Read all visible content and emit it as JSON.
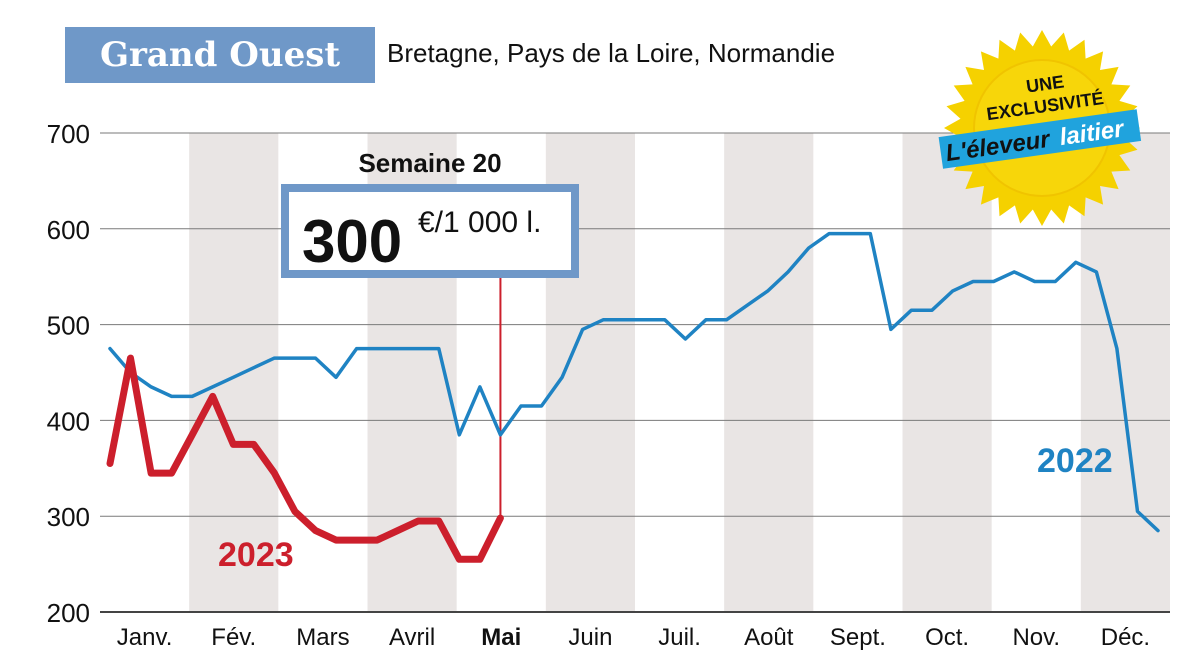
{
  "header": {
    "title": "Grand Ouest",
    "subtitle": "Bretagne, Pays de la Loire, Normandie"
  },
  "badge": {
    "line1": "UNE",
    "line2": "EXCLUSIVITÉ",
    "brand_part1": "L'éleveur",
    "brand_part2": "laitier"
  },
  "callout": {
    "week_label": "Semaine 20",
    "value": "300",
    "unit": "€/1 000 l."
  },
  "colors": {
    "line_2022": "#1f83c3",
    "line_2023": "#cc1f2c",
    "title_box": "#6f98c8",
    "band": "#e9e5e4",
    "badge": "#f5d100"
  },
  "chart_data": {
    "type": "line",
    "x_unit": "week",
    "x_range": [
      1,
      52
    ],
    "ylim": [
      200,
      700
    ],
    "yticks": [
      200,
      300,
      400,
      500,
      600,
      700
    ],
    "months": [
      "Janv.",
      "Fév.",
      "Mars",
      "Avril",
      "Mai",
      "Juin",
      "Juil.",
      "Août",
      "Sept.",
      "Oct.",
      "Nov.",
      "Déc."
    ],
    "highlight_month": "Mai",
    "grid": "horizontal",
    "series": [
      {
        "name": "2022",
        "weeks": [
          1,
          2,
          3,
          4,
          5,
          6,
          7,
          8,
          9,
          10,
          11,
          12,
          13,
          14,
          15,
          16,
          17,
          18,
          19,
          20,
          21,
          22,
          23,
          24,
          25,
          26,
          27,
          28,
          29,
          30,
          31,
          32,
          33,
          34,
          35,
          36,
          37,
          38,
          39,
          40,
          41,
          42,
          43,
          44,
          45,
          46,
          47,
          48,
          49,
          50,
          51,
          52
        ],
        "values": [
          475,
          450,
          435,
          425,
          425,
          435,
          445,
          455,
          465,
          465,
          465,
          445,
          475,
          475,
          475,
          475,
          475,
          385,
          435,
          385,
          415,
          415,
          445,
          495,
          505,
          505,
          505,
          505,
          485,
          505,
          505,
          520,
          535,
          555,
          580,
          595,
          595,
          595,
          495,
          515,
          515,
          535,
          545,
          545,
          555,
          545,
          545,
          565,
          555,
          475,
          305,
          285
        ]
      },
      {
        "name": "2023",
        "weeks": [
          1,
          2,
          3,
          4,
          5,
          6,
          7,
          8,
          9,
          10,
          11,
          12,
          13,
          14,
          15,
          16,
          17,
          18,
          19,
          20
        ],
        "values": [
          355,
          465,
          345,
          345,
          385,
          425,
          375,
          375,
          345,
          305,
          285,
          275,
          275,
          275,
          285,
          295,
          295,
          255,
          255,
          298
        ]
      }
    ],
    "marker": {
      "week": 20,
      "value": 298
    }
  }
}
